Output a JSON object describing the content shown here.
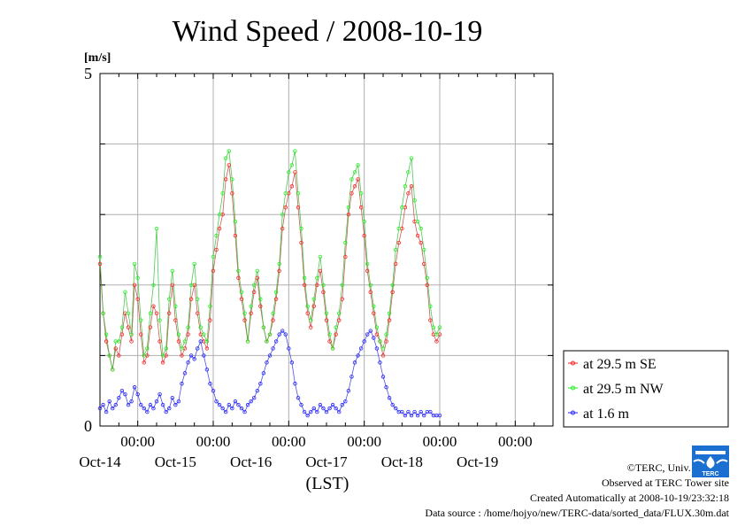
{
  "chart_data": {
    "type": "line",
    "title": "Wind Speed / 2008-10-19",
    "ylabel": "[m/s]",
    "xlabel": "(LST)",
    "ylim": [
      0,
      5
    ],
    "y_ticks": [
      "0",
      "5"
    ],
    "x_tick_time_label": "00:00",
    "x_day_labels": [
      "Oct-14",
      "Oct-15",
      "Oct-16",
      "Oct-17",
      "Oct-18",
      "Oct-19"
    ],
    "x_domain_hours": [
      -12,
      132
    ],
    "grid": true,
    "legend_position": "right",
    "series": [
      {
        "name": "at 29.5 m SE",
        "color": "#ff2020",
        "x_hours": [
          -12,
          -11,
          -10,
          -9,
          -8,
          -7,
          -6,
          -5,
          -4,
          -3,
          -2,
          -1,
          0,
          1,
          2,
          3,
          4,
          5,
          6,
          7,
          8,
          9,
          10,
          11,
          12,
          13,
          14,
          15,
          16,
          17,
          18,
          19,
          20,
          21,
          22,
          23,
          24,
          25,
          26,
          27,
          28,
          29,
          30,
          31,
          32,
          33,
          34,
          35,
          36,
          37,
          38,
          39,
          40,
          41,
          42,
          43,
          44,
          45,
          46,
          47,
          48,
          49,
          50,
          51,
          52,
          53,
          54,
          55,
          56,
          57,
          58,
          59,
          60,
          61,
          62,
          63,
          64,
          65,
          66,
          67,
          68,
          69,
          70,
          71,
          72,
          73,
          74,
          75,
          76,
          77,
          78,
          79,
          80,
          81,
          82,
          83,
          84,
          85,
          86,
          87,
          88,
          89,
          90,
          91,
          92,
          93,
          94,
          95,
          96
        ],
        "values": [
          2.3,
          1.6,
          1.2,
          1.0,
          0.8,
          1.1,
          1.0,
          1.3,
          1.6,
          1.4,
          1.2,
          2.0,
          1.8,
          1.3,
          0.9,
          1.0,
          1.4,
          1.7,
          1.6,
          1.2,
          0.9,
          1.0,
          1.6,
          2.0,
          1.5,
          1.2,
          1.0,
          1.1,
          1.3,
          1.8,
          2.0,
          1.6,
          1.3,
          1.2,
          1.1,
          1.5,
          2.2,
          2.5,
          2.8,
          3.0,
          3.5,
          3.7,
          3.3,
          2.7,
          2.1,
          1.8,
          1.5,
          1.2,
          1.6,
          1.9,
          2.1,
          1.7,
          1.4,
          1.2,
          1.3,
          1.5,
          1.8,
          2.2,
          2.8,
          3.1,
          3.3,
          3.4,
          3.6,
          3.1,
          2.6,
          2.0,
          1.6,
          1.4,
          1.7,
          2.0,
          2.2,
          1.9,
          1.5,
          1.2,
          1.1,
          1.3,
          1.5,
          1.8,
          2.4,
          3.0,
          3.3,
          3.4,
          3.5,
          3.1,
          2.7,
          2.2,
          1.9,
          1.6,
          1.3,
          1.2,
          1.0,
          1.2,
          1.5,
          1.9,
          2.3,
          2.6,
          2.8,
          3.1,
          3.3,
          3.4,
          2.9,
          2.7,
          2.6,
          2.3,
          2.0,
          1.5,
          1.3,
          1.2,
          1.3
        ]
      },
      {
        "name": "at 29.5 m NW",
        "color": "#20ee20",
        "x_hours": [
          -12,
          -11,
          -10,
          -9,
          -8,
          -7,
          -6,
          -5,
          -4,
          -3,
          -2,
          -1,
          0,
          1,
          2,
          3,
          4,
          5,
          6,
          7,
          8,
          9,
          10,
          11,
          12,
          13,
          14,
          15,
          16,
          17,
          18,
          19,
          20,
          21,
          22,
          23,
          24,
          25,
          26,
          27,
          28,
          29,
          30,
          31,
          32,
          33,
          34,
          35,
          36,
          37,
          38,
          39,
          40,
          41,
          42,
          43,
          44,
          45,
          46,
          47,
          48,
          49,
          50,
          51,
          52,
          53,
          54,
          55,
          56,
          57,
          58,
          59,
          60,
          61,
          62,
          63,
          64,
          65,
          66,
          67,
          68,
          69,
          70,
          71,
          72,
          73,
          74,
          75,
          76,
          77,
          78,
          79,
          80,
          81,
          82,
          83,
          84,
          85,
          86,
          87,
          88,
          89,
          90,
          91,
          92,
          93,
          94,
          95,
          96
        ],
        "values": [
          2.4,
          1.6,
          1.3,
          1.0,
          0.8,
          1.2,
          1.2,
          1.4,
          1.9,
          1.6,
          1.3,
          2.3,
          2.1,
          1.5,
          1.0,
          1.1,
          1.6,
          2.0,
          2.8,
          1.5,
          1.0,
          1.1,
          1.8,
          2.2,
          1.7,
          1.3,
          1.1,
          1.2,
          1.4,
          2.0,
          2.3,
          1.8,
          1.4,
          1.3,
          1.2,
          1.7,
          2.4,
          2.7,
          3.0,
          3.3,
          3.8,
          3.9,
          3.5,
          2.9,
          2.2,
          1.9,
          1.6,
          1.2,
          1.7,
          2.0,
          2.2,
          1.8,
          1.4,
          1.2,
          1.3,
          1.6,
          1.9,
          2.3,
          3.0,
          3.3,
          3.6,
          3.7,
          3.9,
          3.3,
          2.8,
          2.1,
          1.7,
          1.5,
          1.8,
          2.1,
          2.4,
          2.0,
          1.6,
          1.3,
          1.1,
          1.4,
          1.6,
          2.0,
          2.6,
          3.1,
          3.5,
          3.6,
          3.7,
          3.3,
          2.9,
          2.3,
          2.0,
          1.7,
          1.4,
          1.2,
          1.1,
          1.3,
          1.6,
          2.0,
          2.5,
          2.8,
          3.1,
          3.4,
          3.6,
          3.8,
          3.2,
          2.9,
          2.8,
          2.5,
          2.1,
          1.7,
          1.4,
          1.3,
          1.4
        ]
      },
      {
        "name": "at 1.6 m",
        "color": "#2020ff",
        "x_hours": [
          -12,
          -11,
          -10,
          -9,
          -8,
          -7,
          -6,
          -5,
          -4,
          -3,
          -2,
          -1,
          0,
          1,
          2,
          3,
          4,
          5,
          6,
          7,
          8,
          9,
          10,
          11,
          12,
          13,
          14,
          15,
          16,
          17,
          18,
          19,
          20,
          21,
          22,
          23,
          24,
          25,
          26,
          27,
          28,
          29,
          30,
          31,
          32,
          33,
          34,
          35,
          36,
          37,
          38,
          39,
          40,
          41,
          42,
          43,
          44,
          45,
          46,
          47,
          48,
          49,
          50,
          51,
          52,
          53,
          54,
          55,
          56,
          57,
          58,
          59,
          60,
          61,
          62,
          63,
          64,
          65,
          66,
          67,
          68,
          69,
          70,
          71,
          72,
          73,
          74,
          75,
          76,
          77,
          78,
          79,
          80,
          81,
          82,
          83,
          84,
          85,
          86,
          87,
          88,
          89,
          90,
          91,
          92,
          93,
          94,
          95,
          96
        ],
        "values": [
          0.25,
          0.3,
          0.2,
          0.35,
          0.25,
          0.3,
          0.4,
          0.5,
          0.45,
          0.3,
          0.35,
          0.55,
          0.45,
          0.3,
          0.25,
          0.2,
          0.3,
          0.25,
          0.35,
          0.45,
          0.3,
          0.2,
          0.25,
          0.4,
          0.3,
          0.35,
          0.6,
          0.75,
          0.9,
          1.0,
          0.95,
          1.1,
          1.2,
          1.0,
          0.8,
          0.6,
          0.5,
          0.35,
          0.3,
          0.25,
          0.2,
          0.3,
          0.25,
          0.35,
          0.3,
          0.25,
          0.2,
          0.3,
          0.35,
          0.4,
          0.5,
          0.6,
          0.75,
          0.9,
          1.0,
          1.1,
          1.2,
          1.3,
          1.35,
          1.3,
          1.1,
          0.9,
          0.6,
          0.4,
          0.3,
          0.2,
          0.15,
          0.2,
          0.25,
          0.2,
          0.3,
          0.25,
          0.2,
          0.25,
          0.3,
          0.25,
          0.2,
          0.3,
          0.35,
          0.5,
          0.7,
          0.9,
          1.0,
          1.1,
          1.2,
          1.3,
          1.35,
          1.25,
          1.1,
          0.9,
          0.7,
          0.55,
          0.4,
          0.3,
          0.25,
          0.2,
          0.2,
          0.15,
          0.2,
          0.15,
          0.2,
          0.15,
          0.2,
          0.15,
          0.2,
          0.2,
          0.15,
          0.15,
          0.15
        ]
      }
    ]
  },
  "footer": {
    "copyright": "©TERC, Univ. Tsukuba",
    "observed": "Observed at TERC Tower site",
    "created": "Created Automatically at 2008-10-19/23:32:18",
    "source": "Data source : /home/hojyo/new/TERC-data/sorted_data/FLUX.30m.dat",
    "logo_text": "TERC"
  }
}
